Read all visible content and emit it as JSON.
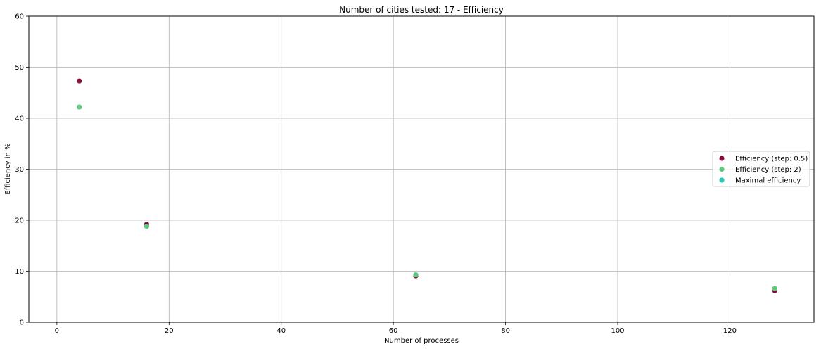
{
  "chart_data": {
    "type": "scatter",
    "title": "Number of cities tested: 17 - Efficiency",
    "xlabel": "Number of processes",
    "ylabel": "Efficiency in %",
    "xlim": [
      -5,
      135
    ],
    "ylim": [
      0,
      60
    ],
    "xticks": [
      0,
      20,
      40,
      60,
      80,
      100,
      120
    ],
    "yticks": [
      0,
      10,
      20,
      30,
      40,
      50,
      60
    ],
    "grid": true,
    "legend_position": "center-right",
    "series": [
      {
        "name": "Efficiency (step: 0.5)",
        "color": "#8b0a3e",
        "x": [
          4,
          16,
          64,
          128
        ],
        "y": [
          47.3,
          19.2,
          9.1,
          6.2
        ]
      },
      {
        "name": "Efficiency (step: 2)",
        "color": "#5cc87c",
        "x": [
          4,
          16,
          64,
          128
        ],
        "y": [
          42.2,
          18.8,
          9.3,
          6.6
        ]
      },
      {
        "name": "Maximal efficiency",
        "color": "#2ec4b6",
        "x": [],
        "y": []
      }
    ]
  }
}
